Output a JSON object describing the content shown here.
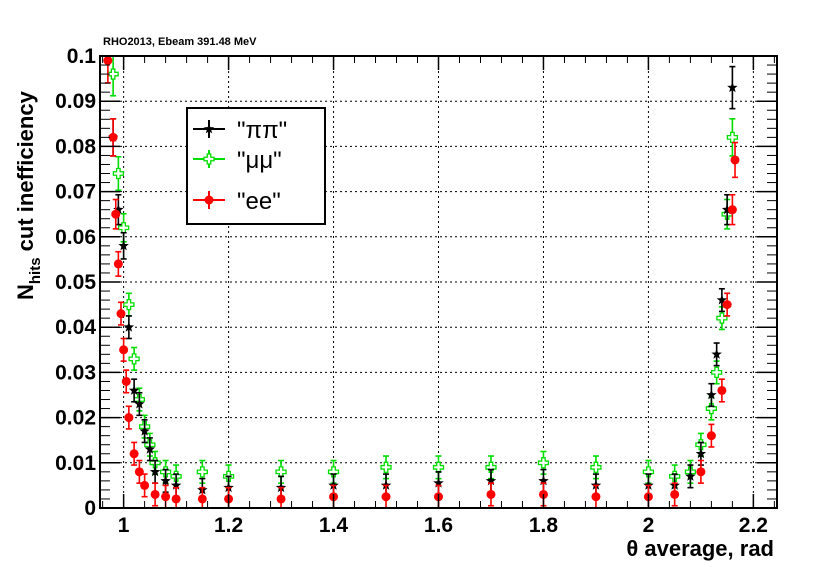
{
  "chart_data": {
    "type": "scatter",
    "title": "RHO2013, Ebeam 391.48 MeV",
    "xlabel": "θ average, rad",
    "ylabel_main": "N",
    "ylabel_sub": "hits",
    "ylabel_rest": " cut inefficiency",
    "xlim": [
      0.955,
      2.245
    ],
    "ylim": [
      0,
      0.1
    ],
    "x_ticks": [
      1,
      1.2,
      1.4,
      1.6,
      1.8,
      2,
      2.2
    ],
    "x_tick_labels": [
      "1",
      "1.2",
      "1.4",
      "1.6",
      "1.8",
      "2",
      "2.2"
    ],
    "y_ticks": [
      0,
      0.01,
      0.02,
      0.03,
      0.04,
      0.05,
      0.06,
      0.07,
      0.08,
      0.09,
      0.1
    ],
    "y_tick_labels": [
      "0",
      "0.01",
      "0.02",
      "0.03",
      "0.04",
      "0.05",
      "0.06",
      "0.07",
      "0.08",
      "0.09",
      "0.1"
    ],
    "grid": true,
    "legend_position": "top-left",
    "series": [
      {
        "name": "\"ππ\"",
        "color": "#000000",
        "marker": "star",
        "x": [
          0.98,
          0.99,
          1.0,
          1.01,
          1.02,
          1.03,
          1.04,
          1.05,
          1.06,
          1.08,
          1.1,
          1.15,
          1.2,
          1.3,
          1.4,
          1.5,
          1.6,
          1.7,
          1.8,
          1.9,
          2.0,
          2.05,
          2.08,
          2.1,
          2.12,
          2.13,
          2.14,
          2.15,
          2.16
        ],
        "y": [
          0.082,
          0.066,
          0.058,
          0.04,
          0.026,
          0.023,
          0.017,
          0.013,
          0.008,
          0.006,
          0.005,
          0.004,
          0.0045,
          0.0045,
          0.005,
          0.005,
          0.0055,
          0.006,
          0.006,
          0.005,
          0.005,
          0.005,
          0.007,
          0.012,
          0.025,
          0.034,
          0.046,
          0.066,
          0.093
        ]
      },
      {
        "name": "\"μμ\"",
        "color": "#00dd00",
        "marker": "open-cross",
        "x": [
          0.98,
          0.99,
          1.0,
          1.01,
          1.02,
          1.03,
          1.04,
          1.05,
          1.06,
          1.08,
          1.1,
          1.15,
          1.2,
          1.3,
          1.4,
          1.5,
          1.6,
          1.7,
          1.8,
          1.9,
          2.0,
          2.05,
          2.08,
          2.1,
          2.12,
          2.13,
          2.14,
          2.15,
          2.16
        ],
        "y": [
          0.096,
          0.074,
          0.062,
          0.045,
          0.033,
          0.024,
          0.018,
          0.014,
          0.01,
          0.008,
          0.007,
          0.008,
          0.007,
          0.008,
          0.008,
          0.009,
          0.009,
          0.009,
          0.01,
          0.009,
          0.008,
          0.007,
          0.008,
          0.014,
          0.022,
          0.03,
          0.042,
          0.065,
          0.082
        ]
      },
      {
        "name": "\"ee\"",
        "color": "#ff0000",
        "marker": "circle",
        "x": [
          0.97,
          0.98,
          0.985,
          0.99,
          0.995,
          1.0,
          1.005,
          1.01,
          1.02,
          1.03,
          1.04,
          1.06,
          1.08,
          1.1,
          1.15,
          1.2,
          1.3,
          1.4,
          1.5,
          1.6,
          1.7,
          1.8,
          1.9,
          2.0,
          2.05,
          2.1,
          2.12,
          2.14,
          2.15,
          2.16,
          2.165
        ],
        "y": [
          0.099,
          0.082,
          0.065,
          0.054,
          0.043,
          0.035,
          0.028,
          0.02,
          0.012,
          0.008,
          0.005,
          0.003,
          0.0025,
          0.002,
          0.002,
          0.002,
          0.002,
          0.0025,
          0.0025,
          0.0025,
          0.003,
          0.003,
          0.0025,
          0.0025,
          0.003,
          0.008,
          0.016,
          0.026,
          0.045,
          0.066,
          0.077
        ]
      }
    ]
  }
}
